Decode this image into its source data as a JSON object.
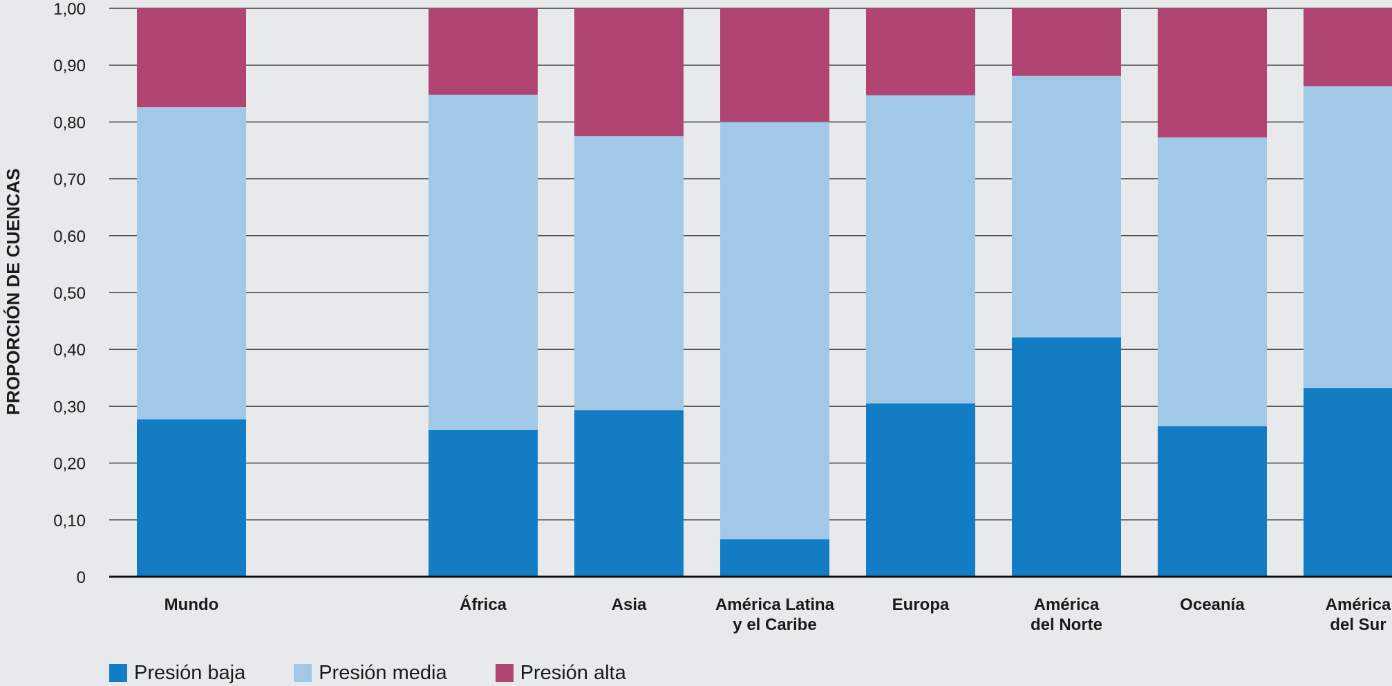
{
  "chart_data": {
    "type": "bar",
    "stacked": true,
    "ylabel": "PROPORCIÓN DE CUENCAS",
    "ylim": [
      0,
      1
    ],
    "yticks": [
      "0",
      "0,10",
      "0,20",
      "0,30",
      "0,40",
      "0,50",
      "0,60",
      "0,70",
      "0,80",
      "0,90",
      "1,00"
    ],
    "grid": true,
    "legend_position": "bottom-left",
    "categories": [
      [
        "Mundo"
      ],
      [
        "África"
      ],
      [
        "Asia"
      ],
      [
        "América Latina",
        "y el Caribe"
      ],
      [
        "Europa"
      ],
      [
        "América",
        "del Norte"
      ],
      [
        "Oceanía"
      ],
      [
        "América",
        "del Sur"
      ]
    ],
    "slots": [
      0,
      2,
      3,
      4,
      5,
      6,
      7,
      8
    ],
    "series": [
      {
        "name": "Presión baja",
        "color": "#127dc5",
        "values": [
          0.277,
          0.258,
          0.293,
          0.066,
          0.305,
          0.421,
          0.265,
          0.332
        ]
      },
      {
        "name": "Presión media",
        "color": "#a2c8e8",
        "values": [
          0.549,
          0.59,
          0.482,
          0.734,
          0.542,
          0.46,
          0.508,
          0.531
        ]
      },
      {
        "name": "Presión alta",
        "color": "#b04574",
        "values": [
          0.174,
          0.152,
          0.225,
          0.2,
          0.153,
          0.119,
          0.227,
          0.137
        ]
      }
    ]
  },
  "legend": [
    {
      "label": "Presión baja",
      "color": "#127dc5"
    },
    {
      "label": "Presión media",
      "color": "#a2c8e8"
    },
    {
      "label": "Presión alta",
      "color": "#b04574"
    }
  ]
}
